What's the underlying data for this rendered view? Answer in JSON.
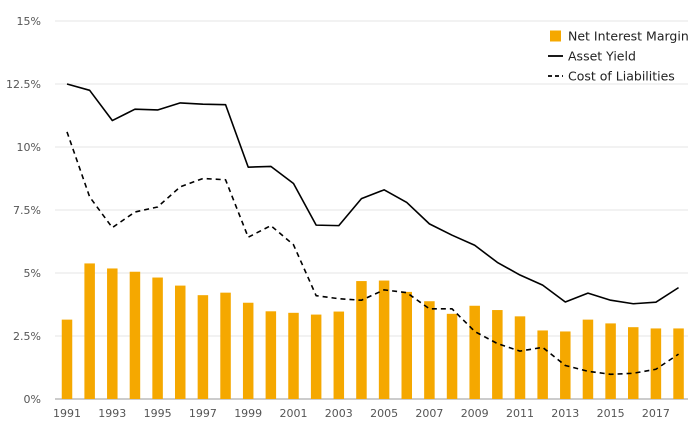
{
  "chart_data": {
    "type": "bar",
    "title": "",
    "xlabel": "",
    "ylabel": "",
    "ylim": [
      0,
      15
    ],
    "y_ticks": [
      {
        "value": 0,
        "label": "0%"
      },
      {
        "value": 2.5,
        "label": "2.5%"
      },
      {
        "value": 5,
        "label": "5%"
      },
      {
        "value": 7.5,
        "label": "7.5%"
      },
      {
        "value": 10,
        "label": "10%"
      },
      {
        "value": 12.5,
        "label": "12.5%"
      },
      {
        "value": 15,
        "label": "15%"
      }
    ],
    "categories": [
      1991,
      1992,
      1993,
      1994,
      1995,
      1996,
      1997,
      1998,
      1999,
      2000,
      2001,
      2002,
      2003,
      2004,
      2005,
      2006,
      2007,
      2008,
      2009,
      2010,
      2011,
      2012,
      2013,
      2014,
      2015,
      2016,
      2017,
      2018
    ],
    "x_tick_labels": [
      "1991",
      "1993",
      "1995",
      "1997",
      "1999",
      "2001",
      "2003",
      "2005",
      "2007",
      "2009",
      "2011",
      "2013",
      "2015",
      "2017"
    ],
    "legend_position": "top-right",
    "grid": true,
    "series": [
      {
        "name": "Net Interest Margin",
        "kind": "bar",
        "color": "#F5A800",
        "values": [
          3.15,
          5.38,
          5.18,
          5.05,
          4.82,
          4.5,
          4.12,
          4.22,
          3.82,
          3.48,
          3.42,
          3.35,
          3.47,
          4.68,
          4.7,
          4.25,
          3.88,
          3.38,
          3.7,
          3.53,
          3.28,
          2.72,
          2.68,
          3.15,
          3.0,
          2.85,
          2.8,
          2.8
        ]
      },
      {
        "name": "Asset Yield",
        "kind": "line",
        "color": "#000000",
        "values": [
          12.5,
          12.25,
          11.05,
          11.5,
          11.47,
          11.75,
          11.7,
          11.68,
          9.2,
          9.23,
          8.55,
          6.9,
          6.88,
          7.95,
          8.3,
          7.8,
          6.95,
          6.5,
          6.1,
          5.42,
          4.92,
          4.52,
          3.85,
          4.2,
          3.92,
          3.78,
          3.84,
          4.42
        ]
      },
      {
        "name": "Cost of Liabilities",
        "kind": "line-dashed",
        "color": "#000000",
        "values": [
          10.6,
          8.02,
          6.8,
          7.42,
          7.62,
          8.42,
          8.75,
          8.7,
          6.42,
          6.88,
          6.12,
          4.1,
          3.98,
          3.92,
          4.33,
          4.22,
          3.58,
          3.58,
          2.68,
          2.2,
          1.9,
          2.05,
          1.33,
          1.1,
          0.98,
          1.02,
          1.18,
          1.78
        ]
      }
    ]
  }
}
